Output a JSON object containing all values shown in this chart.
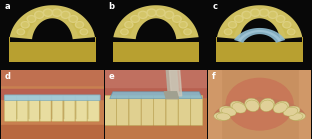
{
  "figure_width": 3.12,
  "figure_height": 1.39,
  "dpi": 100,
  "nrows": 2,
  "ncols": 3,
  "labels": [
    "a",
    "b",
    "c",
    "d",
    "e",
    "f"
  ],
  "label_color": "white",
  "label_fontsize": 6,
  "background_color": "#080808",
  "arch_fill": "#d4c070",
  "arch_shadow": "#b8a040",
  "arch_light": "#e0d090",
  "teeth_color": "#ddd090",
  "retainer_color": "#90bcd0",
  "panel_c_retainer": "#8ab8cc"
}
